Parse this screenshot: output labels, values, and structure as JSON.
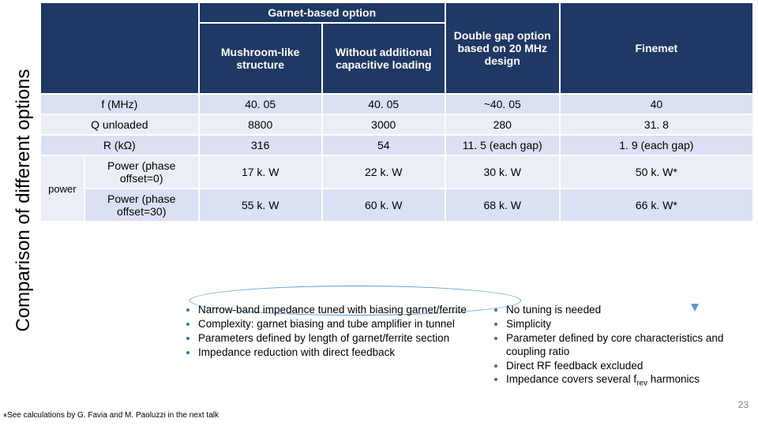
{
  "sidebarTitle": "Comparison of different options",
  "headers": {
    "garnet": "Garnet-based option",
    "mushroom": "Mushroom-like structure",
    "without": "Without additional capacitive loading",
    "doublegap": "Double gap option based on 20 MHz design",
    "finemet": "Finemet"
  },
  "rows": {
    "fLabel": "f (MHz)",
    "f": {
      "c1": "40. 05",
      "c2": "40. 05",
      "c3": "~40. 05",
      "c4": "40"
    },
    "qLabel": "Q unloaded",
    "q": {
      "c1": "8800",
      "c2": "3000",
      "c3": "280",
      "c4": "31. 8"
    },
    "rLabel": "R (kΩ)",
    "r": {
      "c1": "316",
      "c2": "54",
      "c3": "11. 5 (each gap)",
      "c4": "1. 9 (each gap)"
    },
    "powerLabel": "power",
    "p0Label": "Power (phase offset=0)",
    "p0": {
      "c1": "17 k. W",
      "c2": "22 k. W",
      "c3": "30 k. W",
      "c4": "50 k. W*"
    },
    "p30Label": "Power (phase offset=30)",
    "p30": {
      "c1": "55 k. W",
      "c2": "60 k. W",
      "c3": "68 k. W",
      "c4": "66 k. W*"
    }
  },
  "bulletsLeft": [
    "Narrow-band impedance tuned with biasing garnet/ferrite",
    "Complexity: garnet biasing and tube amplifier in tunnel",
    "Parameters defined by length of garnet/ferrite section",
    "Impedance reduction with direct feedback"
  ],
  "bulletsRight": [
    "No tuning is needed",
    "Simplicity",
    "Parameter defined by core characteristics and coupling ratio",
    "Direct RF feedback excluded",
    "Impedance covers several f_rev harmonics"
  ],
  "footnote": "See calculations by G. Favia and M. Paoluzzi in the next talk",
  "pageNum": "23"
}
